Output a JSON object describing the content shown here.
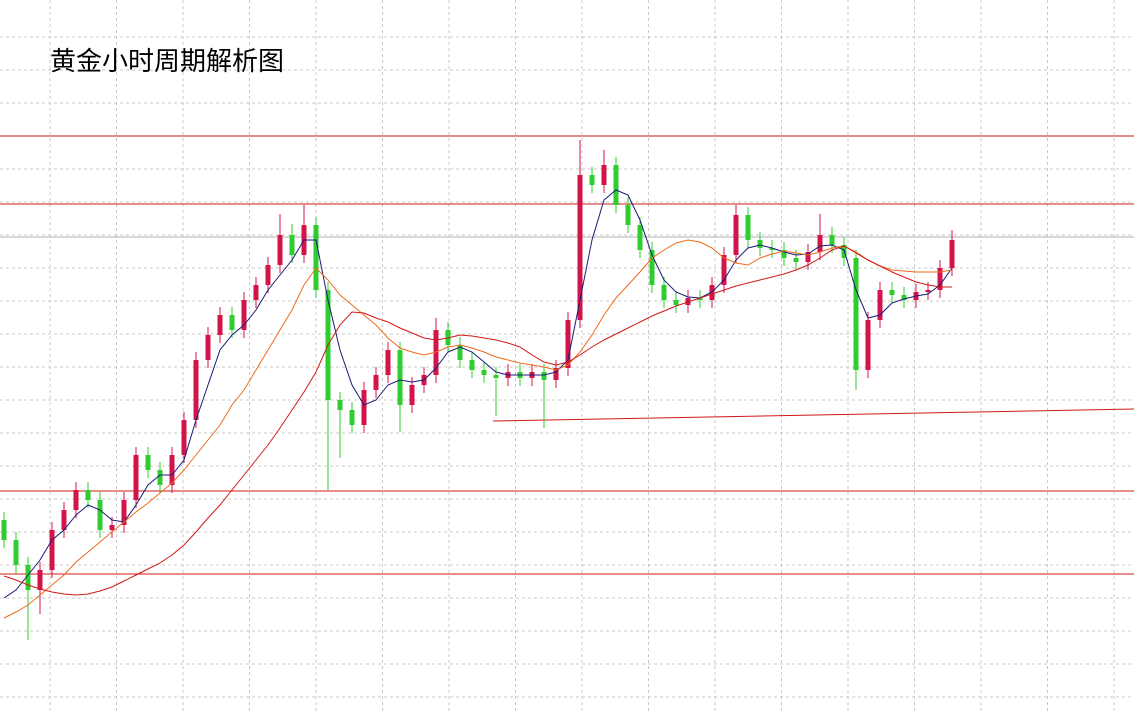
{
  "chart_data": {
    "type": "candlestick",
    "title": "黄金小时周期解析图",
    "ylim": [
      0,
      714
    ],
    "grid": true,
    "up_color": "#d2144a",
    "down_color": "#2ecc2e",
    "open": [
      194,
      174,
      149,
      124,
      144,
      184,
      204,
      224,
      214,
      184,
      189,
      214,
      259,
      244,
      229,
      259,
      294,
      354,
      379,
      399,
      384,
      414,
      429,
      449,
      479,
      459,
      489,
      424,
      314,
      304,
      289,
      324,
      339,
      364,
      309,
      329,
      339,
      384,
      369,
      354,
      344,
      339,
      336,
      342,
      336,
      342,
      334,
      346,
      394,
      539,
      529,
      549,
      509,
      489,
      464,
      429,
      414,
      409,
      416,
      414,
      429,
      459,
      499,
      474,
      466,
      464,
      456,
      452,
      462,
      479,
      469,
      456,
      344,
      394,
      424,
      419,
      414,
      422,
      424,
      446
    ],
    "high": [
      202,
      182,
      157,
      152,
      192,
      212,
      232,
      232,
      222,
      197,
      222,
      267,
      267,
      252,
      267,
      302,
      362,
      387,
      407,
      407,
      422,
      437,
      457,
      500,
      490,
      509,
      497,
      432,
      322,
      312,
      332,
      347,
      372,
      372,
      337,
      347,
      396,
      392,
      377,
      362,
      352,
      347,
      350,
      350,
      350,
      350,
      354,
      402,
      574,
      547,
      564,
      557,
      517,
      497,
      472,
      437,
      422,
      424,
      424,
      437,
      467,
      509,
      507,
      482,
      474,
      472,
      464,
      470,
      500,
      487,
      477,
      464,
      402,
      432,
      432,
      427,
      430,
      432,
      454,
      484
    ],
    "low": [
      166,
      141,
      74,
      100,
      136,
      176,
      196,
      206,
      176,
      176,
      181,
      206,
      236,
      221,
      221,
      251,
      286,
      346,
      371,
      376,
      376,
      406,
      421,
      441,
      451,
      451,
      416,
      224,
      256,
      281,
      281,
      316,
      331,
      282,
      301,
      321,
      331,
      361,
      346,
      336,
      331,
      298,
      328,
      328,
      328,
      286,
      326,
      338,
      386,
      521,
      521,
      501,
      481,
      456,
      421,
      406,
      401,
      401,
      406,
      406,
      421,
      451,
      466,
      458,
      456,
      448,
      444,
      444,
      454,
      461,
      448,
      324,
      336,
      386,
      411,
      406,
      406,
      414,
      416,
      438
    ],
    "close": [
      174,
      149,
      124,
      144,
      184,
      204,
      224,
      214,
      184,
      189,
      214,
      259,
      244,
      229,
      259,
      294,
      354,
      379,
      399,
      384,
      414,
      429,
      449,
      479,
      459,
      489,
      424,
      314,
      304,
      289,
      324,
      339,
      364,
      309,
      329,
      339,
      384,
      369,
      354,
      344,
      339,
      336,
      342,
      336,
      342,
      334,
      346,
      394,
      539,
      529,
      549,
      509,
      489,
      464,
      429,
      414,
      409,
      416,
      414,
      429,
      459,
      499,
      474,
      466,
      464,
      456,
      452,
      462,
      479,
      469,
      456,
      344,
      394,
      424,
      419,
      414,
      422,
      424,
      446,
      474
    ],
    "series": [
      {
        "color": "#1a1a7a",
        "values": [
          116,
          124,
          139,
          154,
          174,
          184,
          199,
          209,
          204,
          194,
          192,
          209,
          229,
          239,
          239,
          254,
          294,
          329,
          364,
          379,
          389,
          404,
          424,
          439,
          454,
          474,
          474,
          414,
          364,
          329,
          309,
          314,
          329,
          334,
          332,
          334,
          346,
          362,
          367,
          362,
          352,
          342,
          339,
          339,
          339,
          339,
          342,
          354,
          414,
          474,
          514,
          524,
          519,
          494,
          459,
          434,
          422,
          417,
          416,
          422,
          434,
          454,
          466,
          469,
          466,
          462,
          459,
          460,
          468,
          469,
          464,
          424,
          396,
          399,
          411,
          415,
          418,
          420,
          429,
          446
        ]
      },
      {
        "color": "#f06a1a",
        "values": [
          96,
          102,
          109,
          119,
          129,
          139,
          152,
          162,
          172,
          182,
          192,
          202,
          211,
          221,
          231,
          244,
          259,
          274,
          289,
          309,
          324,
          344,
          364,
          384,
          404,
          429,
          446,
          434,
          419,
          409,
          399,
          389,
          376,
          366,
          362,
          359,
          362,
          367,
          369,
          366,
          362,
          357,
          354,
          351,
          349,
          347,
          344,
          349,
          362,
          379,
          399,
          416,
          429,
          442,
          456,
          464,
          471,
          474,
          472,
          466,
          456,
          451,
          449,
          456,
          460,
          463,
          461,
          459,
          462,
          466,
          468,
          462,
          454,
          448,
          444,
          443,
          442,
          442,
          442,
          444
        ]
      },
      {
        "color": "#d01818",
        "values": [
          138,
          134,
          129,
          125,
          122,
          120,
          119,
          120,
          123,
          127,
          133,
          139,
          145,
          151,
          159,
          169,
          182,
          196,
          209,
          224,
          239,
          254,
          269,
          286,
          304,
          322,
          342,
          369,
          389,
          402,
          401,
          396,
          392,
          386,
          381,
          376,
          374,
          376,
          379,
          378,
          376,
          374,
          371,
          367,
          359,
          352,
          349,
          352,
          359,
          367,
          374,
          380,
          386,
          392,
          398,
          403,
          408,
          412,
          416,
          420,
          424,
          428,
          431,
          434,
          437,
          440,
          444,
          449,
          456,
          464,
          468,
          461,
          454,
          448,
          442,
          437,
          432,
          429,
          427,
          427
        ]
      }
    ],
    "levels": [
      578,
      510,
      223,
      140
    ],
    "level_color": "#d01818",
    "price_line": 477,
    "price_line_color": "#b0b0b0",
    "trend_line": {
      "x": [
        40.75,
        94.17
      ],
      "values": [
        293,
        305
      ],
      "color": "#d01818"
    }
  }
}
